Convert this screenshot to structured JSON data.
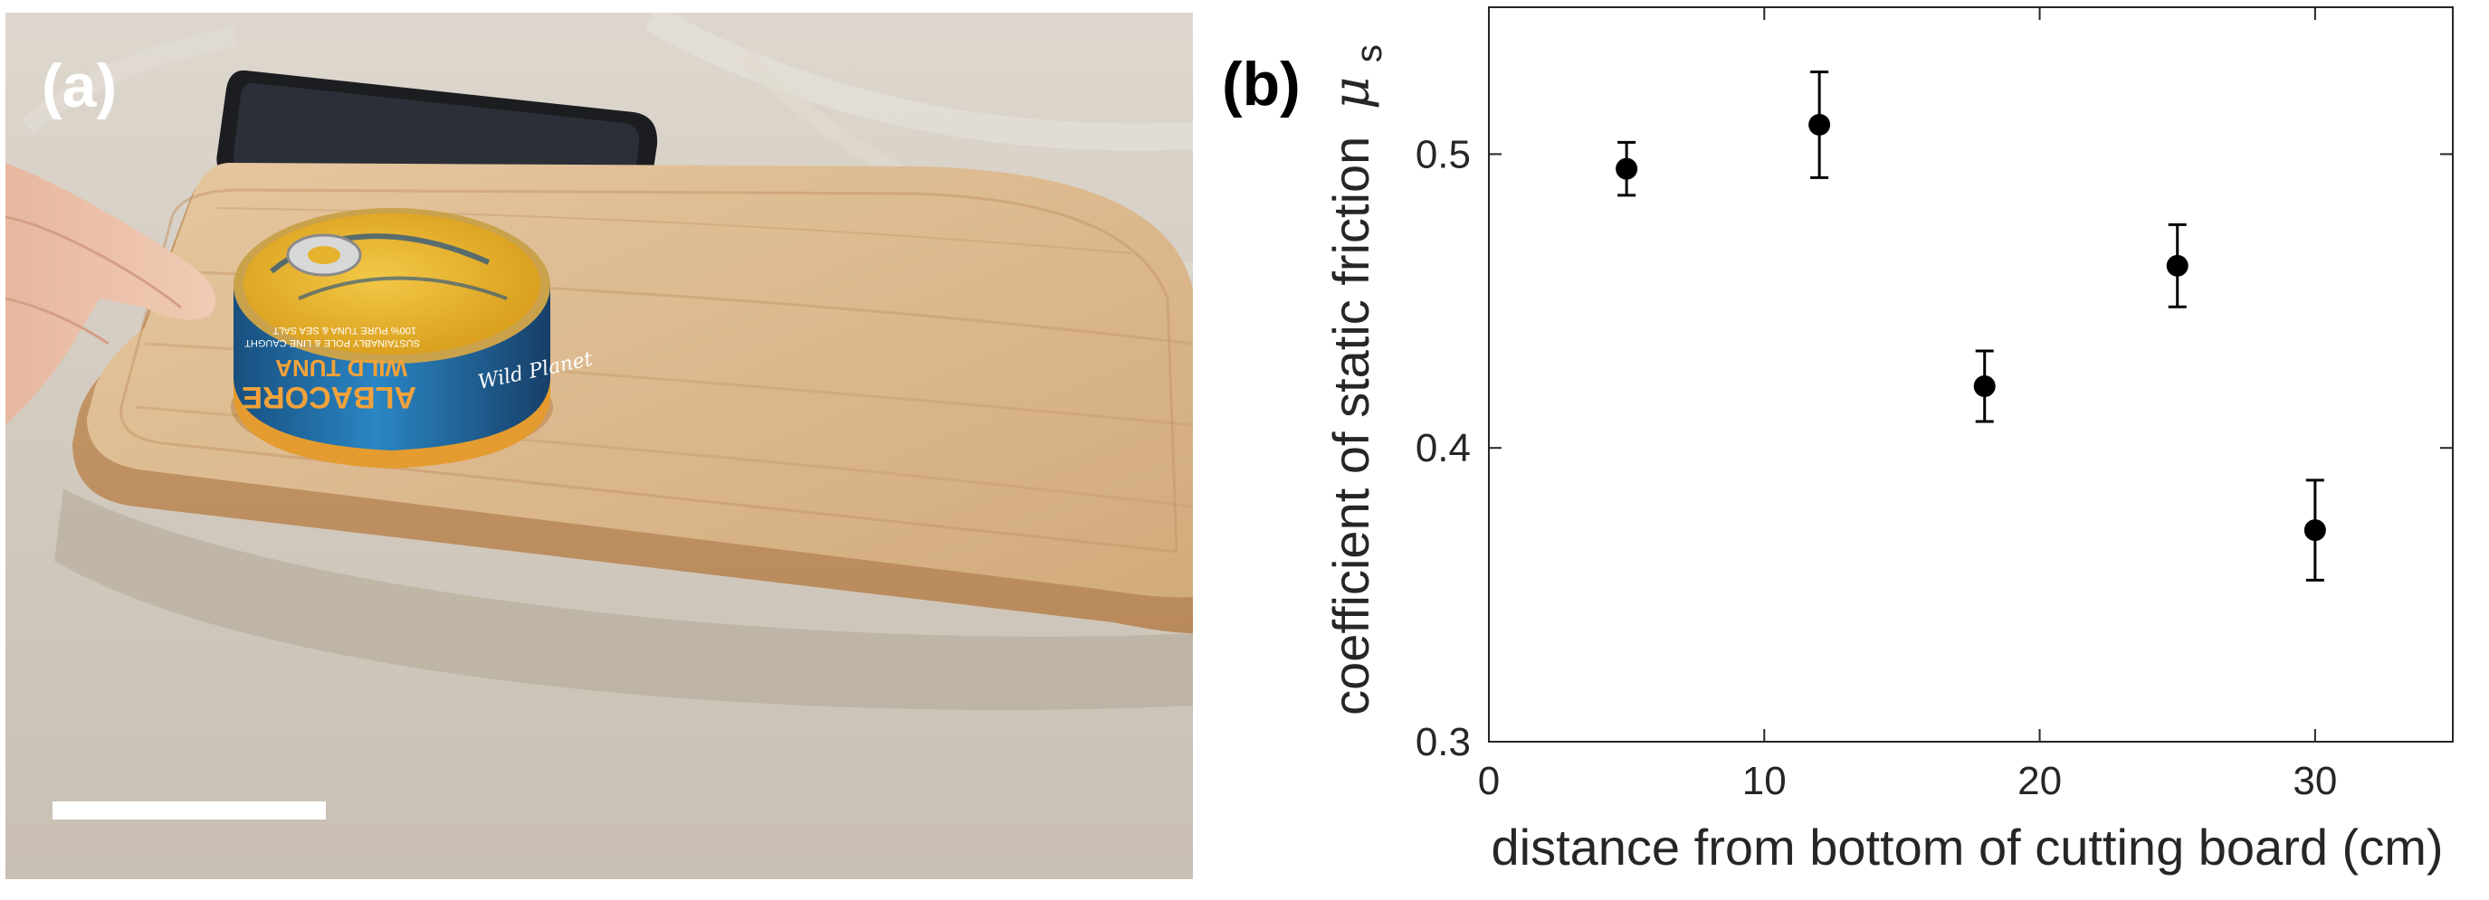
{
  "panel_a": {
    "label": "(a)",
    "can_text": {
      "brand": "Wild Planet",
      "product_line1": "ALBACORE",
      "product_line2": "WILD TUNA",
      "fine_print1": "SUSTAINABLY POLE & LINE CAUGHT",
      "fine_print2": "100% PURE TUNA & SEA SALT"
    },
    "colors": {
      "background": "#cfc7bb",
      "board": "#d8b58a",
      "can_lid": "#e8b430",
      "can_label": "#1f6fa8",
      "scale_bar": "#ffffff"
    }
  },
  "panel_b": {
    "label": "(b)"
  },
  "chart_data": {
    "type": "scatter",
    "title": "",
    "xlabel": "distance from bottom of cutting board (cm)",
    "ylabel": "coefficient of static friction",
    "ylabel_symbol": "μ",
    "ylabel_subscript": "s",
    "xlim": [
      0,
      35
    ],
    "ylim": [
      0.3,
      0.55
    ],
    "x_ticks": [
      0,
      10,
      20,
      30
    ],
    "x_tick_labels": [
      "0",
      "10",
      "20",
      "30"
    ],
    "y_ticks": [
      0.3,
      0.4,
      0.5
    ],
    "y_tick_labels": [
      "0.3",
      "0.4",
      "0.5"
    ],
    "grid": false,
    "series": [
      {
        "name": "static friction",
        "marker_color": "#000000",
        "x": [
          5,
          12,
          18,
          25,
          30
        ],
        "y": [
          0.495,
          0.51,
          0.421,
          0.462,
          0.372
        ],
        "yerr": [
          0.009,
          0.018,
          0.012,
          0.014,
          0.017
        ]
      }
    ]
  }
}
